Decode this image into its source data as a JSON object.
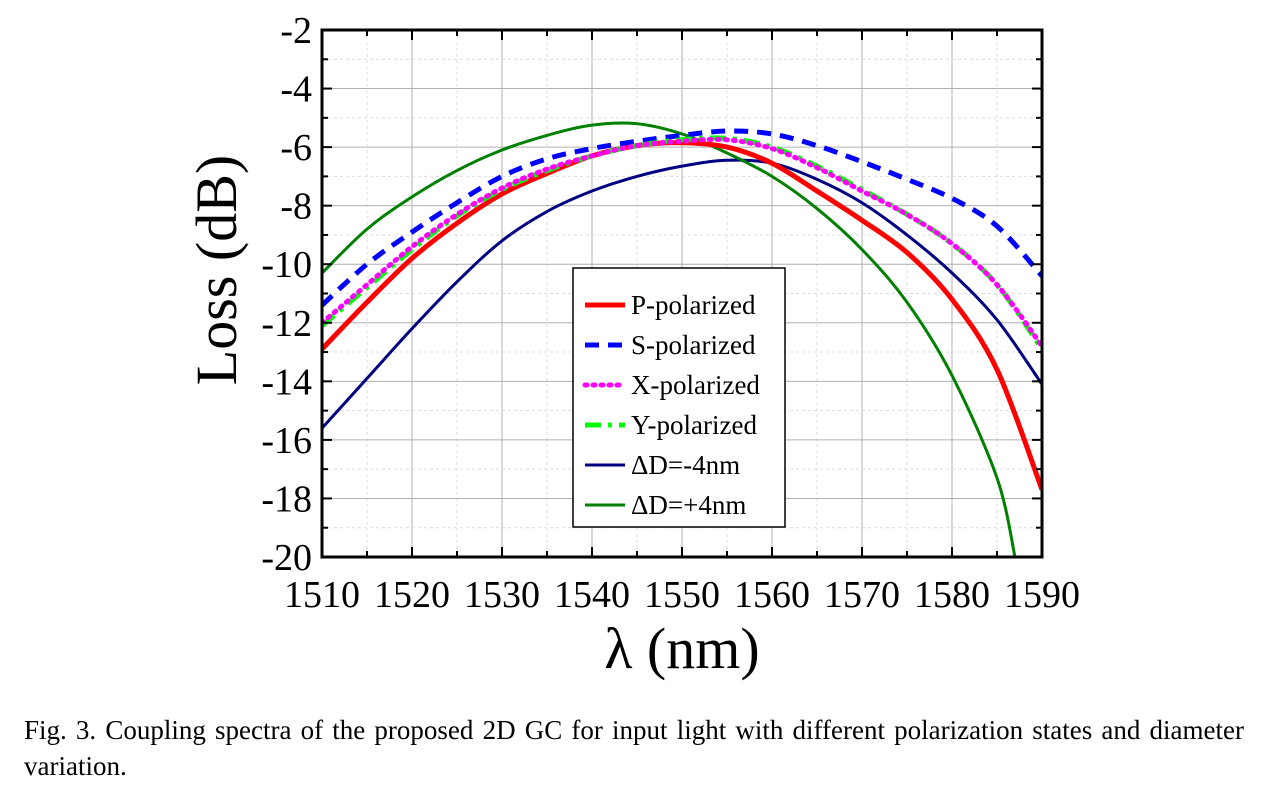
{
  "chart_data": {
    "type": "line",
    "xlabel": "λ (nm)",
    "ylabel": "Loss (dB)",
    "xlim": [
      1510,
      1590
    ],
    "ylim": [
      -20,
      -2
    ],
    "x_ticks": [
      1510,
      1520,
      1530,
      1540,
      1550,
      1560,
      1570,
      1580,
      1590
    ],
    "y_ticks": [
      -20,
      -18,
      -16,
      -14,
      -12,
      -10,
      -8,
      -6,
      -4,
      -2
    ],
    "grid": true,
    "legend_position": "center-bottom",
    "series": [
      {
        "name": "P-polarized",
        "color": "#ff0000",
        "style": "solid",
        "width": "thick",
        "points": [
          [
            1510,
            -12.9
          ],
          [
            1515,
            -11.3
          ],
          [
            1520,
            -9.8
          ],
          [
            1525,
            -8.6
          ],
          [
            1530,
            -7.6
          ],
          [
            1535,
            -6.9
          ],
          [
            1540,
            -6.3
          ],
          [
            1545,
            -5.95
          ],
          [
            1550,
            -5.85
          ],
          [
            1555,
            -6.0
          ],
          [
            1560,
            -6.55
          ],
          [
            1565,
            -7.5
          ],
          [
            1570,
            -8.5
          ],
          [
            1575,
            -9.6
          ],
          [
            1580,
            -11.2
          ],
          [
            1585,
            -13.6
          ],
          [
            1590,
            -17.7
          ]
        ]
      },
      {
        "name": "S-polarized",
        "color": "#0000ff",
        "style": "dashed",
        "width": "thick",
        "points": [
          [
            1510,
            -11.4
          ],
          [
            1515,
            -10.0
          ],
          [
            1520,
            -8.9
          ],
          [
            1525,
            -7.9
          ],
          [
            1530,
            -7.0
          ],
          [
            1535,
            -6.4
          ],
          [
            1540,
            -6.05
          ],
          [
            1545,
            -5.8
          ],
          [
            1550,
            -5.6
          ],
          [
            1555,
            -5.45
          ],
          [
            1560,
            -5.55
          ],
          [
            1565,
            -5.95
          ],
          [
            1570,
            -6.5
          ],
          [
            1575,
            -7.1
          ],
          [
            1580,
            -7.75
          ],
          [
            1585,
            -8.7
          ],
          [
            1590,
            -10.4
          ]
        ]
      },
      {
        "name": "X-polarized",
        "color": "#ff00ff",
        "style": "dotted",
        "width": "thick",
        "points": [
          [
            1510,
            -12.0
          ],
          [
            1515,
            -10.7
          ],
          [
            1520,
            -9.4
          ],
          [
            1525,
            -8.3
          ],
          [
            1530,
            -7.4
          ],
          [
            1535,
            -6.75
          ],
          [
            1540,
            -6.3
          ],
          [
            1545,
            -5.95
          ],
          [
            1550,
            -5.8
          ],
          [
            1555,
            -5.75
          ],
          [
            1560,
            -6.05
          ],
          [
            1565,
            -6.7
          ],
          [
            1570,
            -7.5
          ],
          [
            1575,
            -8.3
          ],
          [
            1580,
            -9.3
          ],
          [
            1585,
            -10.7
          ],
          [
            1590,
            -12.8
          ]
        ]
      },
      {
        "name": "Y-polarized",
        "color": "#00ff00",
        "style": "dashdot",
        "width": "thick",
        "points": [
          [
            1510,
            -12.1
          ],
          [
            1515,
            -10.8
          ],
          [
            1520,
            -9.5
          ],
          [
            1525,
            -8.35
          ],
          [
            1530,
            -7.45
          ],
          [
            1535,
            -6.8
          ],
          [
            1540,
            -6.3
          ],
          [
            1545,
            -5.95
          ],
          [
            1550,
            -5.75
          ],
          [
            1555,
            -5.7
          ],
          [
            1560,
            -6.0
          ],
          [
            1565,
            -6.65
          ],
          [
            1570,
            -7.45
          ],
          [
            1575,
            -8.3
          ],
          [
            1580,
            -9.3
          ],
          [
            1585,
            -10.7
          ],
          [
            1590,
            -12.9
          ]
        ]
      },
      {
        "name": "ΔD=-4nm",
        "color": "#000080",
        "style": "solid",
        "width": "thin",
        "points": [
          [
            1510,
            -15.6
          ],
          [
            1515,
            -13.9
          ],
          [
            1520,
            -12.2
          ],
          [
            1525,
            -10.6
          ],
          [
            1530,
            -9.2
          ],
          [
            1535,
            -8.2
          ],
          [
            1540,
            -7.5
          ],
          [
            1545,
            -7.0
          ],
          [
            1550,
            -6.65
          ],
          [
            1555,
            -6.45
          ],
          [
            1560,
            -6.55
          ],
          [
            1565,
            -7.1
          ],
          [
            1570,
            -7.9
          ],
          [
            1575,
            -9.0
          ],
          [
            1580,
            -10.3
          ],
          [
            1585,
            -11.9
          ],
          [
            1590,
            -14.1
          ]
        ]
      },
      {
        "name": "ΔD=+4nm",
        "color": "#008000",
        "style": "solid",
        "width": "thin",
        "points": [
          [
            1510,
            -10.3
          ],
          [
            1515,
            -8.8
          ],
          [
            1520,
            -7.7
          ],
          [
            1525,
            -6.8
          ],
          [
            1530,
            -6.1
          ],
          [
            1535,
            -5.6
          ],
          [
            1540,
            -5.25
          ],
          [
            1545,
            -5.2
          ],
          [
            1550,
            -5.55
          ],
          [
            1555,
            -6.2
          ],
          [
            1560,
            -7.0
          ],
          [
            1565,
            -8.1
          ],
          [
            1570,
            -9.5
          ],
          [
            1575,
            -11.3
          ],
          [
            1580,
            -13.8
          ],
          [
            1585,
            -17.3
          ],
          [
            1587,
            -20.0
          ]
        ]
      }
    ]
  },
  "caption": "Fig. 3. Coupling spectra of the proposed 2D GC for input light with different polarization states and diameter variation."
}
